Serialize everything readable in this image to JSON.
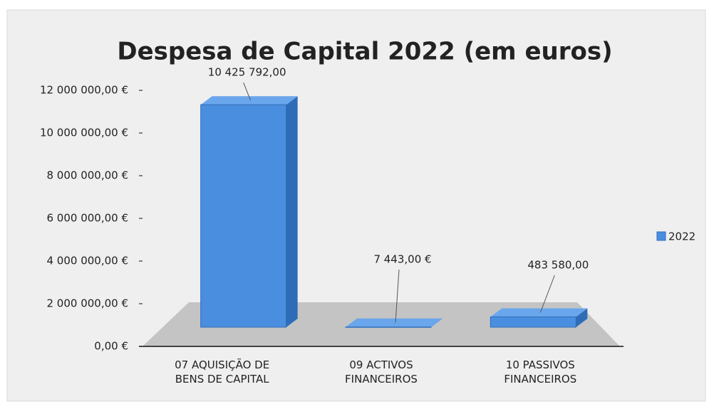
{
  "chart_data": {
    "type": "bar3d",
    "title": "Despesa de Capital 2022 (em euros)",
    "categories": [
      "07 AQUISIÇÃO DE BENS DE CAPITAL",
      "09 ACTIVOS FINANCEIROS",
      "10 PASSIVOS FINANCEIROS"
    ],
    "series": [
      {
        "name": "2022",
        "color": "#4a8fdf",
        "values": [
          10425792,
          7443,
          483580
        ],
        "value_labels": [
          "10 425 792,00",
          "7 443,00 €",
          "483 580,00"
        ]
      }
    ],
    "ylim": [
      0,
      12000000
    ],
    "yticks": [
      {
        "value": 0,
        "label": "0,00 €"
      },
      {
        "value": 2000000,
        "label": "2 000 000,00 €"
      },
      {
        "value": 4000000,
        "label": "4 000 000,00 €"
      },
      {
        "value": 6000000,
        "label": "6 000 000,00 €"
      },
      {
        "value": 8000000,
        "label": "8 000 000,00 €"
      },
      {
        "value": 10000000,
        "label": "10 000 000,00 €"
      },
      {
        "value": 12000000,
        "label": "12 000 000,00 €"
      }
    ],
    "grid": false,
    "legend": "right"
  }
}
